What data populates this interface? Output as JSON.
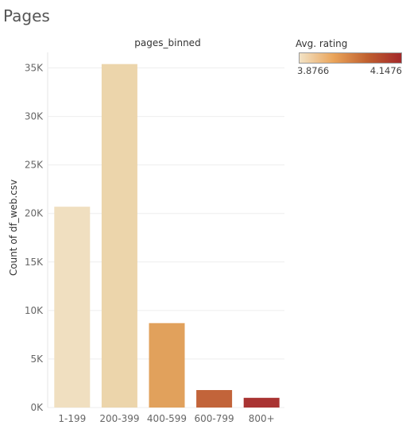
{
  "page": {
    "title": "Pages"
  },
  "legend": {
    "title": "Avg. rating",
    "min_label": "3.8766",
    "max_label": "4.1476",
    "colors": [
      "#f2e3c6",
      "#eaa45a",
      "#c0602f",
      "#a3282a"
    ]
  },
  "chart_data": {
    "type": "bar",
    "title": "pages_binned",
    "xlabel": "",
    "ylabel": "Count of df_web.csv",
    "categories": [
      "1-199",
      "200-399",
      "400-599",
      "600-799",
      "800+"
    ],
    "values": [
      20700,
      35400,
      8700,
      1800,
      1000
    ],
    "colors": [
      "#f0dfc0",
      "#ecd5ab",
      "#e1a15c",
      "#c2643a",
      "#a93332"
    ],
    "ylim": [
      0,
      36600
    ],
    "yticks": [
      0,
      5000,
      10000,
      15000,
      20000,
      25000,
      30000,
      35000
    ],
    "ytick_labels": [
      "0K",
      "5K",
      "10K",
      "15K",
      "20K",
      "25K",
      "30K",
      "35K"
    ],
    "grid": true
  }
}
